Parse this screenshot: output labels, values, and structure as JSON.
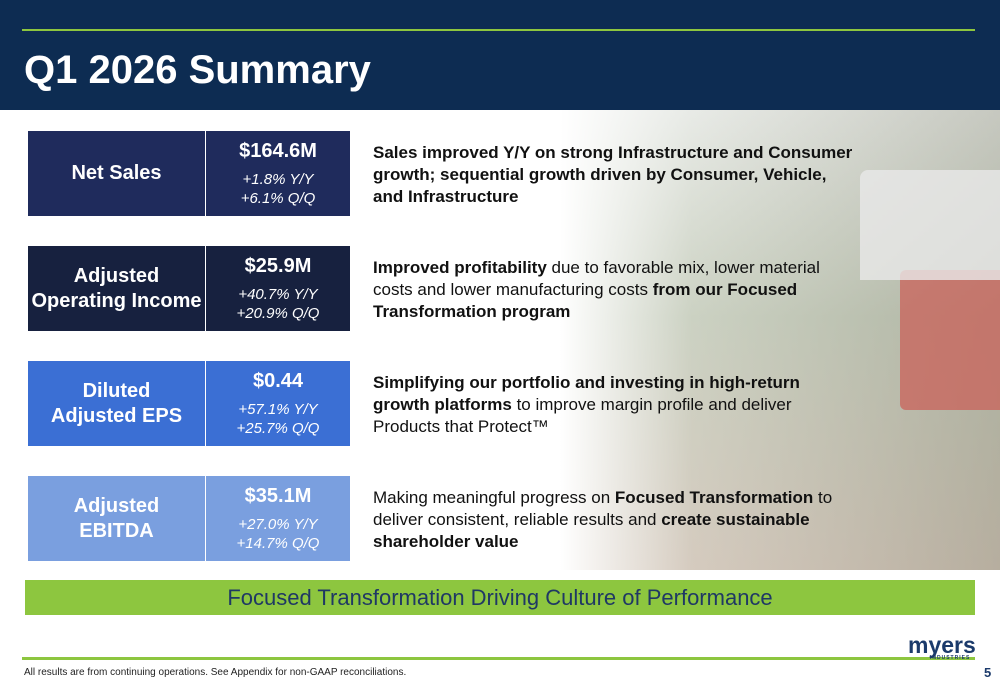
{
  "header": {
    "title": "Q1 2026 Summary"
  },
  "metrics": [
    {
      "label_lines": [
        "Net Sales"
      ],
      "value": "$164.6M",
      "yy": "+1.8% Y/Y",
      "qq": "+6.1% Q/Q",
      "color": "#1f2b5c",
      "description": [
        {
          "text": "Sales improved Y/Y on strong Infrastructure and Consumer growth; sequential growth driven by Consumer, Vehicle, and Infrastructure",
          "bold": true
        }
      ]
    },
    {
      "label_lines": [
        "Adjusted",
        "Operating Income"
      ],
      "value": "$25.9M",
      "yy": "+40.7% Y/Y",
      "qq": "+20.9% Q/Q",
      "color": "#17213f",
      "description": [
        {
          "text": "Improved profitability",
          "bold": true
        },
        {
          "text": " due to favorable mix, lower material costs and lower manufacturing costs ",
          "bold": false
        },
        {
          "text": "from our Focused Transformation program",
          "bold": true
        }
      ]
    },
    {
      "label_lines": [
        "Diluted",
        "Adjusted EPS"
      ],
      "value": "$0.44",
      "yy": "+57.1% Y/Y",
      "qq": "+25.7% Q/Q",
      "color": "#3b6fd4",
      "description": [
        {
          "text": "Simplifying our portfolio and investing in high-return growth platforms",
          "bold": true
        },
        {
          "text": " to improve margin profile and deliver Products that Protect™",
          "bold": false
        }
      ]
    },
    {
      "label_lines": [
        "Adjusted",
        "EBITDA"
      ],
      "value": "$35.1M",
      "yy": "+27.0% Y/Y",
      "qq": "+14.7% Q/Q",
      "color": "#7a9fdf",
      "description": [
        {
          "text": "Making meaningful progress on ",
          "bold": false
        },
        {
          "text": "Focused Transformation",
          "bold": true
        },
        {
          "text": " to deliver consistent, reliable results and ",
          "bold": false
        },
        {
          "text": "create sustainable shareholder value",
          "bold": true
        }
      ]
    }
  ],
  "banner": "Focused Transformation Driving Culture of Performance",
  "footnote": "All results are from continuing operations. See Appendix for non-GAAP reconciliations.",
  "logo": {
    "name": "myers",
    "sub": "INDUSTRIES"
  },
  "page_number": "5"
}
